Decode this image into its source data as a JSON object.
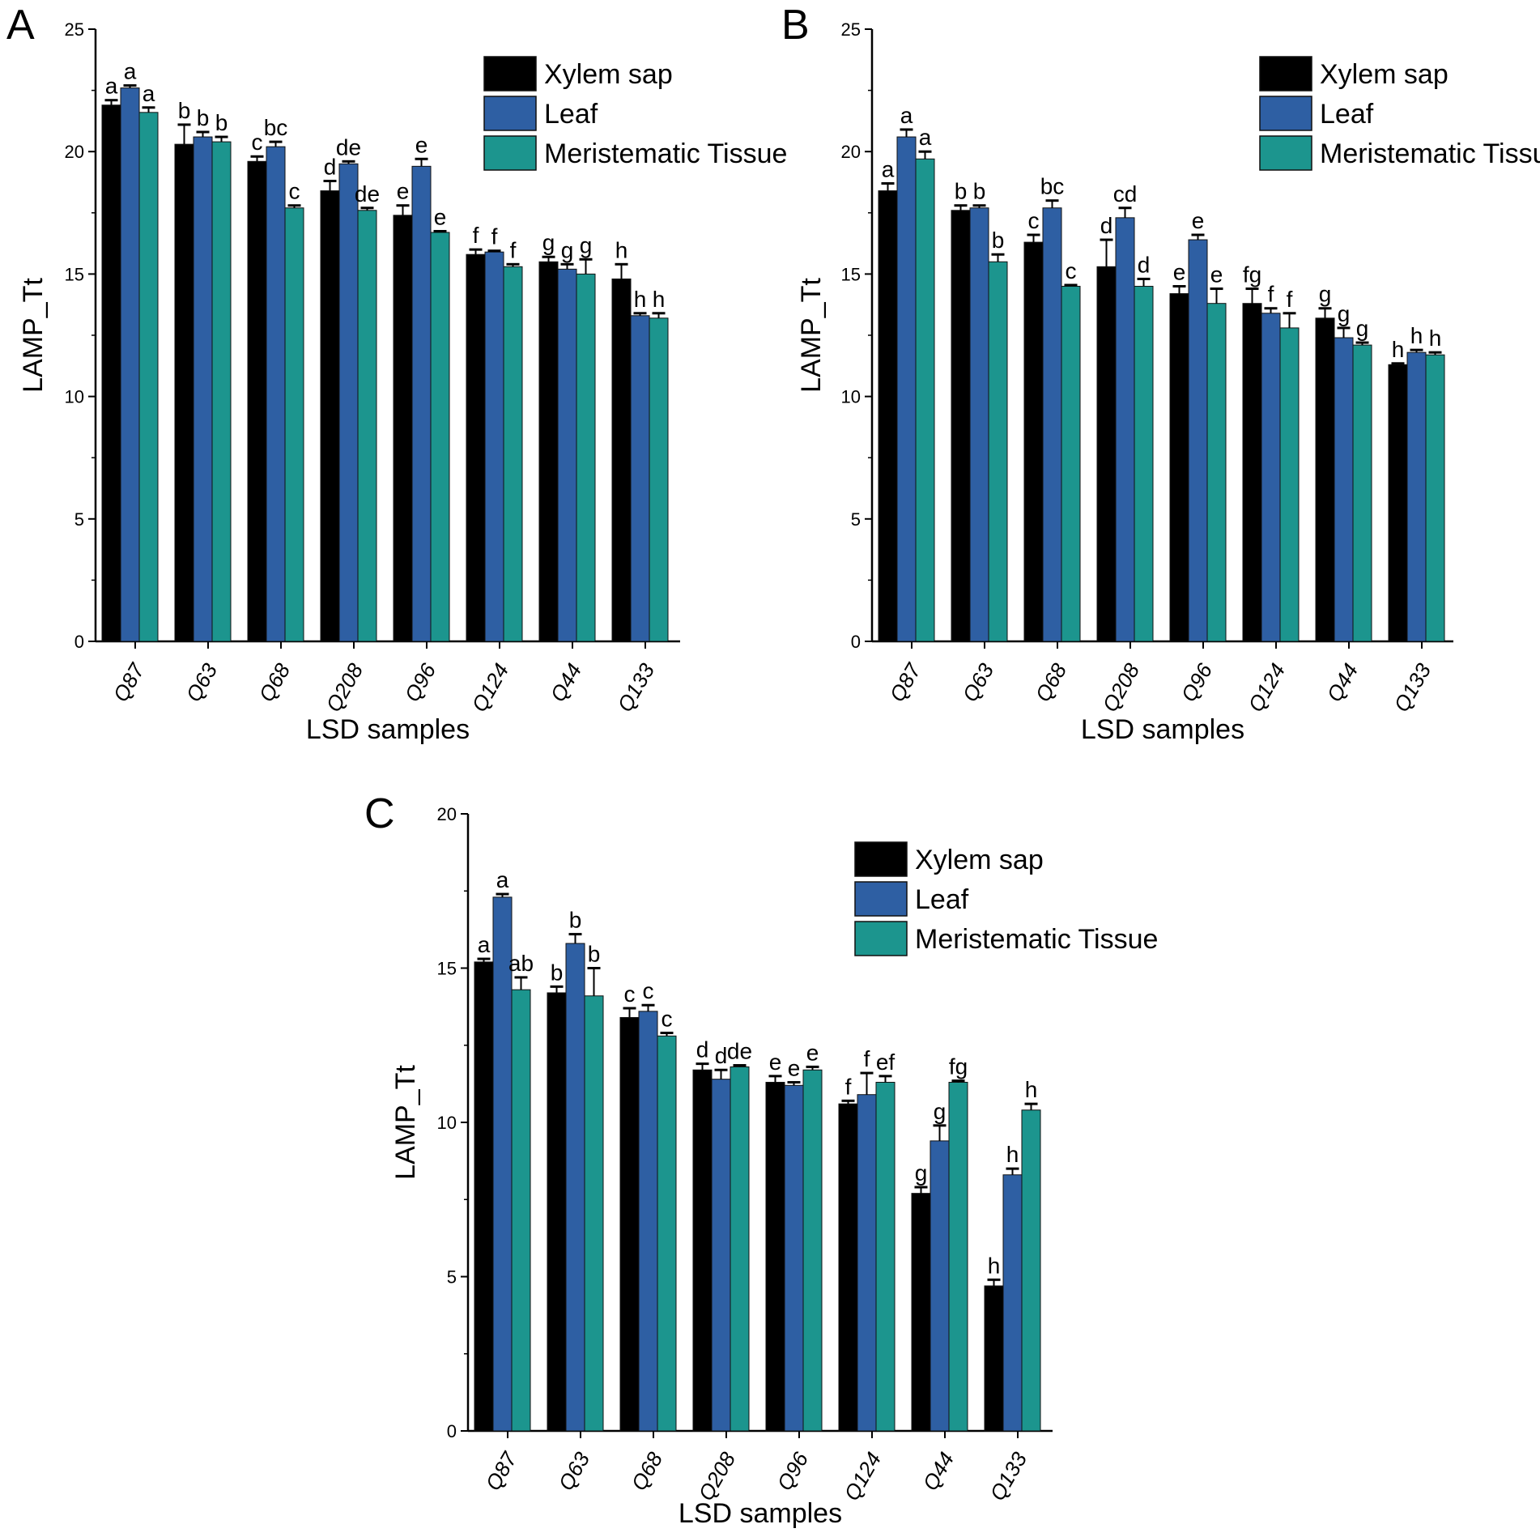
{
  "legend": [
    {
      "name": "Xylem sap",
      "color": "#000000"
    },
    {
      "name": "Leaf",
      "color": "#2e5fa3"
    },
    {
      "name": "Meristematic Tissue",
      "color": "#1c958e"
    }
  ],
  "chart_data": [
    {
      "panel": "A",
      "type": "bar",
      "title": "",
      "xlabel": "LSD samples",
      "ylabel": "LAMP_Tt",
      "ylim": [
        0,
        25
      ],
      "yticks": [
        0,
        5,
        10,
        15,
        20,
        25
      ],
      "categories": [
        "Q87",
        "Q63",
        "Q68",
        "Q208",
        "Q96",
        "Q124",
        "Q44",
        "Q133"
      ],
      "series": [
        {
          "name": "Xylem sap",
          "values": [
            21.9,
            20.3,
            19.6,
            18.4,
            17.4,
            15.8,
            15.5,
            14.8
          ],
          "errors": [
            0.2,
            0.8,
            0.2,
            0.4,
            0.4,
            0.2,
            0.2,
            0.6
          ],
          "letters": [
            "a",
            "b",
            "c",
            "d",
            "e",
            "f",
            "g",
            "h"
          ]
        },
        {
          "name": "Leaf",
          "values": [
            22.6,
            20.6,
            20.2,
            19.5,
            19.4,
            15.9,
            15.2,
            13.3
          ],
          "errors": [
            0.1,
            0.2,
            0.2,
            0.1,
            0.3,
            0.05,
            0.2,
            0.1
          ],
          "letters": [
            "a",
            "b",
            "bc",
            "de",
            "e",
            "f",
            "g",
            "h"
          ]
        },
        {
          "name": "Meristematic Tissue",
          "values": [
            21.6,
            20.4,
            17.7,
            17.6,
            16.7,
            15.3,
            15.0,
            13.2
          ],
          "errors": [
            0.2,
            0.2,
            0.1,
            0.1,
            0.05,
            0.1,
            0.6,
            0.2
          ],
          "letters": [
            "a",
            "b",
            "c",
            "de",
            "e",
            "f",
            "g",
            "h"
          ]
        }
      ]
    },
    {
      "panel": "B",
      "type": "bar",
      "title": "",
      "xlabel": "LSD samples",
      "ylabel": "LAMP_Tt",
      "ylim": [
        0,
        25
      ],
      "yticks": [
        0,
        5,
        10,
        15,
        20,
        25
      ],
      "categories": [
        "Q87",
        "Q63",
        "Q68",
        "Q208",
        "Q96",
        "Q124",
        "Q44",
        "Q133"
      ],
      "series": [
        {
          "name": "Xylem sap",
          "values": [
            18.4,
            17.6,
            16.3,
            15.3,
            14.2,
            13.8,
            13.2,
            11.3
          ],
          "errors": [
            0.3,
            0.2,
            0.3,
            1.1,
            0.3,
            0.6,
            0.4,
            0.05
          ],
          "letters": [
            "a",
            "b",
            "c",
            "d",
            "e",
            "fg",
            "g",
            "h"
          ]
        },
        {
          "name": "Leaf",
          "values": [
            20.6,
            17.7,
            17.7,
            17.3,
            16.4,
            13.4,
            12.4,
            11.8
          ],
          "errors": [
            0.3,
            0.1,
            0.3,
            0.4,
            0.2,
            0.2,
            0.4,
            0.1
          ],
          "letters": [
            "a",
            "b",
            "bc",
            "cd",
            "e",
            "f",
            "g",
            "h"
          ]
        },
        {
          "name": "Meristematic Tissue",
          "values": [
            19.7,
            15.5,
            14.5,
            14.5,
            13.8,
            12.8,
            12.1,
            11.7
          ],
          "errors": [
            0.3,
            0.3,
            0.05,
            0.3,
            0.6,
            0.6,
            0.1,
            0.1
          ],
          "letters": [
            "a",
            "b",
            "c",
            "d",
            "e",
            "f",
            "g",
            "h"
          ]
        }
      ]
    },
    {
      "panel": "C",
      "type": "bar",
      "title": "",
      "xlabel": "LSD samples",
      "ylabel": "LAMP_Tt",
      "ylim": [
        0,
        20
      ],
      "yticks": [
        0,
        5,
        10,
        15,
        20
      ],
      "categories": [
        "Q87",
        "Q63",
        "Q68",
        "Q208",
        "Q96",
        "Q124",
        "Q44",
        "Q133"
      ],
      "series": [
        {
          "name": "Xylem sap",
          "values": [
            15.2,
            14.2,
            13.4,
            11.7,
            11.3,
            10.6,
            7.7,
            4.7
          ],
          "errors": [
            0.1,
            0.2,
            0.3,
            0.2,
            0.2,
            0.1,
            0.2,
            0.2
          ],
          "letters": [
            "a",
            "b",
            "c",
            "d",
            "e",
            "f",
            "g",
            "h"
          ]
        },
        {
          "name": "Leaf",
          "values": [
            17.3,
            15.8,
            13.6,
            11.4,
            11.2,
            10.9,
            9.4,
            8.3
          ],
          "errors": [
            0.1,
            0.3,
            0.2,
            0.3,
            0.1,
            0.7,
            0.5,
            0.2
          ],
          "letters": [
            "a",
            "b",
            "c",
            "d",
            "e",
            "f",
            "g",
            "h"
          ]
        },
        {
          "name": "Meristematic Tissue",
          "values": [
            14.3,
            14.1,
            12.8,
            11.8,
            11.7,
            11.3,
            11.3,
            10.4
          ],
          "errors": [
            0.4,
            0.9,
            0.1,
            0.05,
            0.1,
            0.2,
            0.05,
            0.2
          ],
          "letters": [
            "ab",
            "b",
            "c",
            "de",
            "e",
            "ef",
            "fg",
            "h"
          ]
        }
      ]
    }
  ]
}
